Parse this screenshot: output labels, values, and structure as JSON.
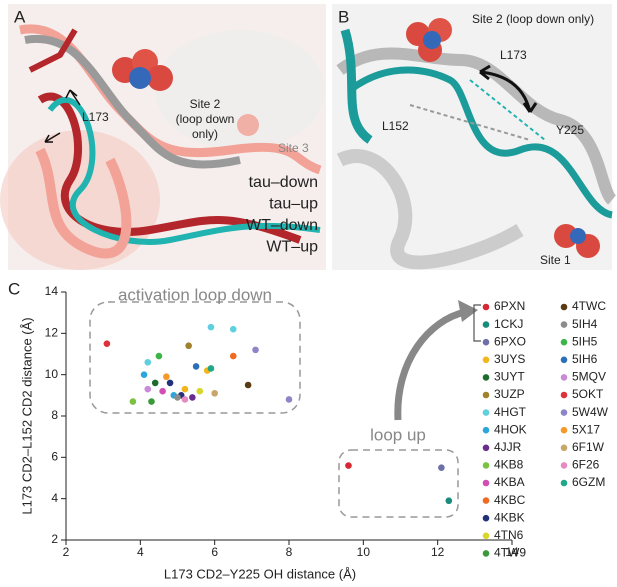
{
  "panel_a": {
    "label": "A",
    "residue": "L173",
    "site2": [
      "Site 2",
      "(loop down",
      "only)"
    ],
    "site3": "Site 3",
    "legend": [
      {
        "label": "tau–down",
        "color": "#f2a297"
      },
      {
        "label": "tau–up",
        "color": "#b3262b"
      },
      {
        "label": "WT–down",
        "color": "#9a9a9a"
      },
      {
        "label": "WT–up",
        "color": "#21b3b0"
      }
    ]
  },
  "panel_b": {
    "label": "B",
    "site2": "Site 2 (loop down only)",
    "residues": [
      "L173",
      "L152",
      "Y225"
    ],
    "site1": "Site 1"
  },
  "chart_data": {
    "type": "scatter",
    "panel_label": "C",
    "xlabel": "L173 CD2–Y225 OH distance (Å)",
    "ylabel": "L173 CD2–L152 CD2 distance (Å)",
    "annotations": [
      "activation loop down",
      "loop up"
    ],
    "xlim": [
      2,
      14
    ],
    "xticks": [
      2,
      4,
      6,
      8,
      10,
      12,
      14
    ],
    "ylim": [
      2,
      14
    ],
    "yticks": [
      2,
      4,
      6,
      8,
      10,
      12,
      14
    ],
    "series": [
      {
        "name": "6PXN",
        "color": "#d62834",
        "x": [
          9.6
        ],
        "values": [
          5.6
        ]
      },
      {
        "name": "1CKJ",
        "color": "#1a8c7c",
        "x": [
          12.3
        ],
        "values": [
          3.9
        ]
      },
      {
        "name": "6PXO",
        "color": "#6c6fa8",
        "x": [
          12.1
        ],
        "values": [
          5.5
        ]
      },
      {
        "name": "3UYS",
        "color": "#f2b51b",
        "x": [
          5.2,
          5.8
        ],
        "values": [
          9.3,
          10.2
        ]
      },
      {
        "name": "3UYT",
        "color": "#1e6b2e",
        "x": [
          4.4
        ],
        "values": [
          9.6
        ]
      },
      {
        "name": "3UZP",
        "color": "#a0822c",
        "x": [
          5.3
        ],
        "values": [
          11.4
        ]
      },
      {
        "name": "4HGT",
        "color": "#5fd0e0",
        "x": [
          5.9,
          6.5,
          4.2
        ],
        "values": [
          12.3,
          12.2,
          10.6
        ]
      },
      {
        "name": "4HOK",
        "color": "#2aa6dc",
        "x": [
          4.1,
          4.9
        ],
        "values": [
          10.0,
          9.0
        ]
      },
      {
        "name": "4JJR",
        "color": "#6a2c8c",
        "x": [
          5.4
        ],
        "values": [
          8.9
        ]
      },
      {
        "name": "4KB8",
        "color": "#7cc242",
        "x": [
          3.8
        ],
        "values": [
          8.7
        ]
      },
      {
        "name": "4KBA",
        "color": "#d14fb5",
        "x": [
          4.6
        ],
        "values": [
          9.2
        ]
      },
      {
        "name": "4KBC",
        "color": "#f06b22",
        "x": [
          6.5
        ],
        "values": [
          10.9
        ]
      },
      {
        "name": "4KBK",
        "color": "#23307a",
        "x": [
          4.8,
          5.1
        ],
        "values": [
          9.6,
          9.0
        ]
      },
      {
        "name": "4TN6",
        "color": "#d7d72a",
        "x": [
          5.6
        ],
        "values": [
          9.2
        ]
      },
      {
        "name": "4TW9",
        "color": "#3a9a3a",
        "x": [
          4.3
        ],
        "values": [
          8.7
        ]
      },
      {
        "name": "4TWC",
        "color": "#5a3a12",
        "x": [
          6.9
        ],
        "values": [
          9.5
        ]
      },
      {
        "name": "5IH4",
        "color": "#8c8c8c",
        "x": [
          5.0
        ],
        "values": [
          8.9
        ]
      },
      {
        "name": "5IH5",
        "color": "#3cb44a",
        "x": [
          4.5
        ],
        "values": [
          10.9
        ]
      },
      {
        "name": "5IH6",
        "color": "#2a6fb8",
        "x": [
          5.5
        ],
        "values": [
          10.4
        ]
      },
      {
        "name": "5MQV",
        "color": "#c98ad8",
        "x": [
          4.2
        ],
        "values": [
          9.3
        ]
      },
      {
        "name": "5OKT",
        "color": "#e0303a",
        "x": [
          3.1
        ],
        "values": [
          11.5
        ]
      },
      {
        "name": "5W4W",
        "color": "#8c86c8",
        "x": [
          7.1,
          8.0
        ],
        "values": [
          11.2,
          8.8
        ]
      },
      {
        "name": "5X17",
        "color": "#f59a2a",
        "x": [
          4.7
        ],
        "values": [
          9.9
        ]
      },
      {
        "name": "6F1W",
        "color": "#c7a66a",
        "x": [
          6.0
        ],
        "values": [
          9.1
        ]
      },
      {
        "name": "6F26",
        "color": "#e78ac3",
        "x": [
          5.2
        ],
        "values": [
          8.8
        ]
      },
      {
        "name": "6GZM",
        "color": "#1fa88a",
        "x": [
          5.9
        ],
        "values": [
          10.3
        ]
      }
    ]
  }
}
